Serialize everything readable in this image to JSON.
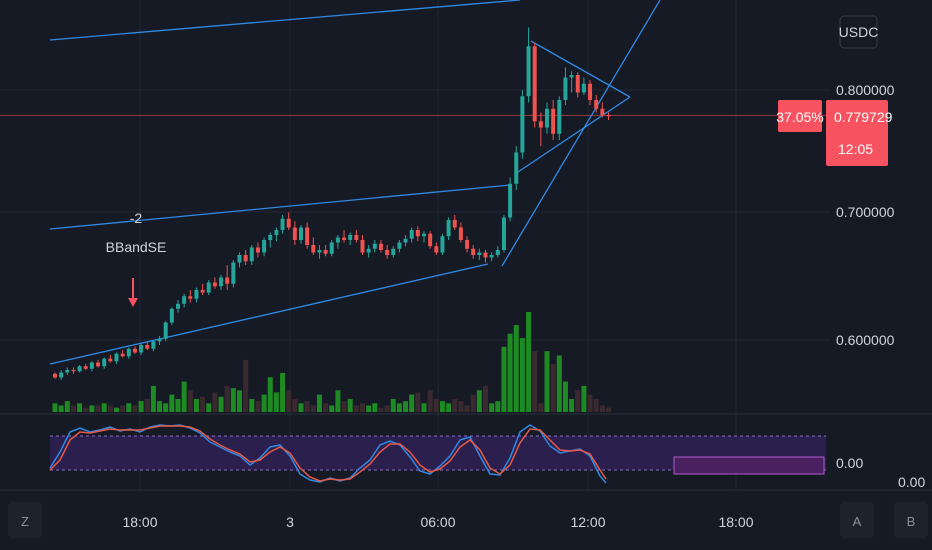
{
  "chart_data": {
    "type": "candlestick",
    "currency": "USDC",
    "y_ticks": [
      "0.800000",
      "0.700000",
      "0.600000"
    ],
    "y_tick_values": [
      0.8,
      0.7,
      0.6
    ],
    "x_ticks": [
      "18:00",
      "3",
      "06:00",
      "12:00",
      "18:00"
    ],
    "last_price": {
      "change": "37.05%",
      "value": "0.779729",
      "countdown": "12:05",
      "price": 0.7797
    },
    "annotation": {
      "count": "-2",
      "label": "BBandSE"
    },
    "oscillator_value": "0.00",
    "oscillator2_value": "0.00",
    "price_range": [
      0.52,
      0.86
    ],
    "candles": [
      [
        0.573,
        0.574,
        0.569,
        0.57
      ],
      [
        0.57,
        0.576,
        0.568,
        0.574
      ],
      [
        0.574,
        0.578,
        0.572,
        0.576
      ],
      [
        0.576,
        0.578,
        0.573,
        0.575
      ],
      [
        0.575,
        0.58,
        0.574,
        0.579
      ],
      [
        0.579,
        0.581,
        0.576,
        0.577
      ],
      [
        0.577,
        0.583,
        0.575,
        0.582
      ],
      [
        0.582,
        0.584,
        0.578,
        0.579
      ],
      [
        0.579,
        0.586,
        0.577,
        0.585
      ],
      [
        0.585,
        0.588,
        0.582,
        0.583
      ],
      [
        0.583,
        0.59,
        0.581,
        0.589
      ],
      [
        0.589,
        0.592,
        0.586,
        0.587
      ],
      [
        0.587,
        0.594,
        0.585,
        0.593
      ],
      [
        0.593,
        0.595,
        0.589,
        0.59
      ],
      [
        0.59,
        0.597,
        0.588,
        0.596
      ],
      [
        0.596,
        0.598,
        0.592,
        0.593
      ],
      [
        0.593,
        0.6,
        0.591,
        0.599
      ],
      [
        0.599,
        0.603,
        0.596,
        0.601
      ],
      [
        0.601,
        0.615,
        0.599,
        0.614
      ],
      [
        0.614,
        0.626,
        0.612,
        0.625
      ],
      [
        0.625,
        0.632,
        0.622,
        0.629
      ],
      [
        0.629,
        0.637,
        0.626,
        0.635
      ],
      [
        0.635,
        0.64,
        0.63,
        0.633
      ],
      [
        0.633,
        0.642,
        0.63,
        0.64
      ],
      [
        0.64,
        0.645,
        0.636,
        0.638
      ],
      [
        0.638,
        0.648,
        0.636,
        0.646
      ],
      [
        0.646,
        0.65,
        0.641,
        0.643
      ],
      [
        0.643,
        0.652,
        0.64,
        0.65
      ],
      [
        0.65,
        0.66,
        0.64,
        0.645
      ],
      [
        0.645,
        0.664,
        0.642,
        0.662
      ],
      [
        0.662,
        0.67,
        0.658,
        0.668
      ],
      [
        0.668,
        0.672,
        0.66,
        0.663
      ],
      [
        0.663,
        0.676,
        0.66,
        0.674
      ],
      [
        0.674,
        0.678,
        0.666,
        0.67
      ],
      [
        0.67,
        0.682,
        0.667,
        0.68
      ],
      [
        0.68,
        0.686,
        0.674,
        0.684
      ],
      [
        0.684,
        0.69,
        0.679,
        0.688
      ],
      [
        0.688,
        0.7,
        0.685,
        0.697
      ],
      [
        0.697,
        0.702,
        0.688,
        0.69
      ],
      [
        0.69,
        0.695,
        0.676,
        0.68
      ],
      [
        0.68,
        0.692,
        0.677,
        0.69
      ],
      [
        0.69,
        0.694,
        0.673,
        0.676
      ],
      [
        0.676,
        0.682,
        0.668,
        0.67
      ],
      [
        0.67,
        0.676,
        0.665,
        0.672
      ],
      [
        0.672,
        0.676,
        0.667,
        0.669
      ],
      [
        0.669,
        0.68,
        0.667,
        0.678
      ],
      [
        0.678,
        0.684,
        0.673,
        0.682
      ],
      [
        0.682,
        0.688,
        0.678,
        0.68
      ],
      [
        0.68,
        0.686,
        0.676,
        0.684
      ],
      [
        0.684,
        0.688,
        0.678,
        0.68
      ],
      [
        0.68,
        0.684,
        0.668,
        0.67
      ],
      [
        0.67,
        0.676,
        0.666,
        0.673
      ],
      [
        0.673,
        0.68,
        0.67,
        0.677
      ],
      [
        0.677,
        0.68,
        0.67,
        0.672
      ],
      [
        0.672,
        0.676,
        0.665,
        0.668
      ],
      [
        0.668,
        0.675,
        0.666,
        0.673
      ],
      [
        0.673,
        0.68,
        0.67,
        0.678
      ],
      [
        0.678,
        0.684,
        0.675,
        0.681
      ],
      [
        0.681,
        0.69,
        0.678,
        0.688
      ],
      [
        0.688,
        0.691,
        0.679,
        0.683
      ],
      [
        0.683,
        0.687,
        0.678,
        0.685
      ],
      [
        0.685,
        0.687,
        0.673,
        0.675
      ],
      [
        0.675,
        0.678,
        0.668,
        0.67
      ],
      [
        0.67,
        0.685,
        0.668,
        0.683
      ],
      [
        0.683,
        0.698,
        0.68,
        0.696
      ],
      [
        0.696,
        0.7,
        0.688,
        0.69
      ],
      [
        0.69,
        0.694,
        0.678,
        0.68
      ],
      [
        0.68,
        0.683,
        0.67,
        0.673
      ],
      [
        0.673,
        0.676,
        0.665,
        0.668
      ],
      [
        0.668,
        0.673,
        0.664,
        0.67
      ],
      [
        0.67,
        0.672,
        0.662,
        0.666
      ],
      [
        0.666,
        0.67,
        0.663,
        0.668
      ],
      [
        0.668,
        0.675,
        0.666,
        0.672
      ],
      [
        0.672,
        0.7,
        0.67,
        0.698
      ],
      [
        0.698,
        0.73,
        0.695,
        0.725
      ],
      [
        0.725,
        0.755,
        0.72,
        0.75
      ],
      [
        0.75,
        0.8,
        0.745,
        0.795
      ],
      [
        0.795,
        0.85,
        0.79,
        0.835
      ],
      [
        0.835,
        0.838,
        0.77,
        0.775
      ],
      [
        0.775,
        0.782,
        0.755,
        0.77
      ],
      [
        0.77,
        0.79,
        0.765,
        0.785
      ],
      [
        0.785,
        0.792,
        0.76,
        0.765
      ],
      [
        0.765,
        0.795,
        0.76,
        0.792
      ],
      [
        0.792,
        0.818,
        0.788,
        0.81
      ],
      [
        0.81,
        0.815,
        0.798,
        0.812
      ],
      [
        0.812,
        0.814,
        0.794,
        0.798
      ],
      [
        0.798,
        0.81,
        0.796,
        0.805
      ],
      [
        0.805,
        0.808,
        0.788,
        0.792
      ],
      [
        0.792,
        0.796,
        0.782,
        0.785
      ],
      [
        0.785,
        0.79,
        0.778,
        0.78
      ],
      [
        0.78,
        0.782,
        0.776,
        0.779
      ]
    ],
    "volumes": [
      4,
      3,
      5,
      3,
      4,
      2,
      3,
      3,
      4,
      3,
      2,
      3,
      4,
      3,
      5,
      6,
      12,
      5,
      4,
      8,
      6,
      14,
      10,
      6,
      7,
      4,
      9,
      7,
      12,
      11,
      10,
      24,
      6,
      5,
      8,
      16,
      9,
      18,
      10,
      6,
      4,
      5,
      3,
      8,
      4,
      3,
      10,
      5,
      6,
      3,
      4,
      3,
      4,
      2,
      3,
      6,
      4,
      5,
      8,
      9,
      4,
      10,
      6,
      5,
      4,
      6,
      5,
      3,
      8,
      10,
      12,
      4,
      5,
      30,
      36,
      40,
      34,
      46,
      28,
      4,
      28,
      22,
      26,
      14,
      6,
      10,
      12,
      8,
      6,
      3,
      2
    ],
    "volume_up": [
      1,
      1,
      1,
      0,
      1,
      0,
      1,
      0,
      1,
      0,
      1,
      0,
      1,
      0,
      1,
      0,
      1,
      1,
      1,
      1,
      1,
      1,
      0,
      1,
      0,
      1,
      0,
      1,
      0,
      1,
      1,
      0,
      1,
      0,
      1,
      1,
      1,
      1,
      0,
      0,
      1,
      0,
      0,
      1,
      0,
      1,
      1,
      0,
      1,
      0,
      0,
      1,
      1,
      0,
      0,
      1,
      1,
      1,
      1,
      0,
      1,
      0,
      0,
      1,
      1,
      0,
      0,
      0,
      0,
      1,
      0,
      1,
      1,
      1,
      1,
      1,
      1,
      1,
      0,
      0,
      1,
      0,
      1,
      1,
      1,
      0,
      1,
      0,
      0,
      0,
      0
    ]
  }
}
